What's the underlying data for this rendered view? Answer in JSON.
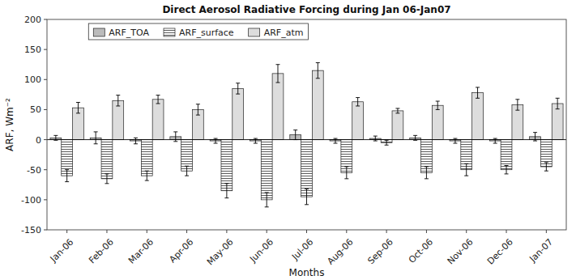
{
  "chart_data": {
    "type": "bar",
    "title": "Direct Aerosol Radiative Forcing during Jan 06-Jan07",
    "xlabel": "Months",
    "ylabel": "ARF, Wm⁻²",
    "categories": [
      "Jan-06",
      "Feb-06",
      "Mar-06",
      "Apr-06",
      "May-06",
      "Jun-06",
      "Jul-06",
      "Aug-06",
      "Sep-06",
      "Oct-06",
      "Nov-06",
      "Dec-06",
      "Jan-07"
    ],
    "series": [
      {
        "name": "ARF_TOA",
        "color": "#bbbbbb",
        "values": [
          3,
          3,
          -2,
          5,
          -2,
          -2,
          8,
          -2,
          2,
          3,
          -2,
          -2,
          5
        ],
        "errors": [
          4,
          10,
          5,
          8,
          4,
          4,
          8,
          4,
          4,
          4,
          4,
          4,
          7
        ]
      },
      {
        "name": "ARF_surface",
        "color": "#ffffff",
        "values": [
          -60,
          -65,
          -60,
          -52,
          -85,
          -100,
          -95,
          -55,
          -5,
          -55,
          -50,
          -50,
          -45
        ],
        "errors": [
          10,
          8,
          8,
          8,
          12,
          12,
          13,
          10,
          4,
          10,
          10,
          7,
          7
        ]
      },
      {
        "name": "ARF_atm",
        "color": "#dddddd",
        "values": [
          53,
          65,
          67,
          50,
          85,
          110,
          115,
          63,
          48,
          57,
          78,
          58,
          60
        ],
        "errors": [
          9,
          9,
          7,
          9,
          9,
          15,
          13,
          7,
          4,
          7,
          9,
          9,
          9
        ]
      }
    ],
    "ylim": [
      -150,
      200
    ],
    "yticks": [
      -150,
      -100,
      -50,
      0,
      50,
      100,
      150,
      200
    ],
    "grid": false,
    "legend": "upper left"
  }
}
